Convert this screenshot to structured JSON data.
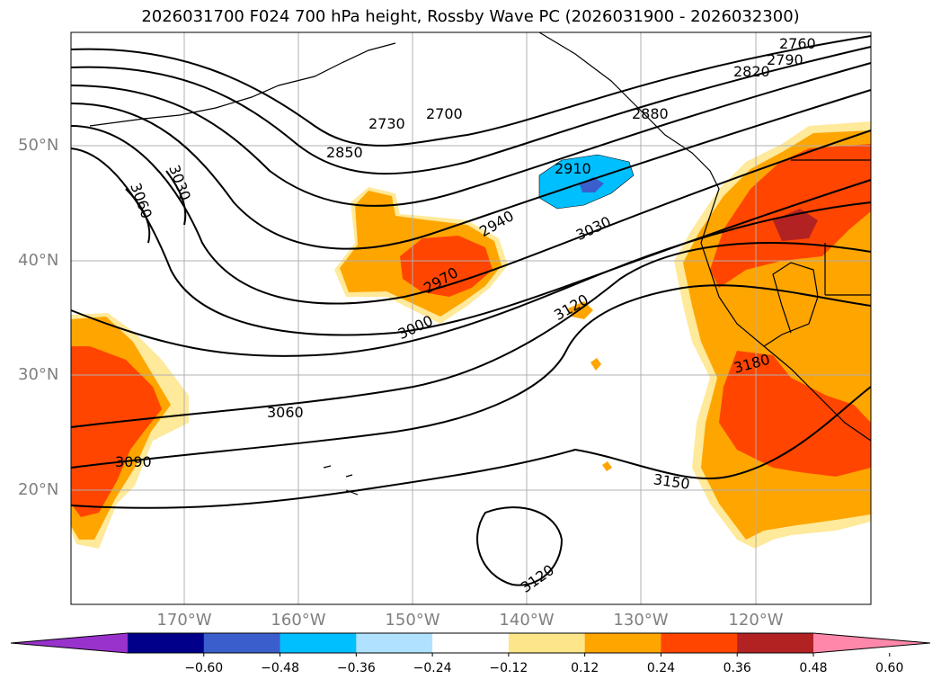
{
  "title": "2026031700 F024 700 hPa height, Rossby Wave PC (2026031900 - 2026032300)",
  "lat_labels": [
    "50°N",
    "40°N",
    "30°N",
    "20°N"
  ],
  "lon_labels": [
    "170°W",
    "160°W",
    "150°W",
    "140°W",
    "130°W",
    "120°W"
  ],
  "colorbar": {
    "tick_labels": [
      "−0.60",
      "−0.48",
      "−0.36",
      "−0.24",
      "−0.12",
      "0.12",
      "0.24",
      "0.36",
      "0.48",
      "0.60"
    ],
    "colors": [
      "#9932cc",
      "#00008b",
      "#3a5fcd",
      "#00bfff",
      "#b0e2ff",
      "#ffffff",
      "#fde68a",
      "#ffa500",
      "#ff4500",
      "#b22222",
      "#ff88aa"
    ]
  },
  "contour_labels": [
    "2760",
    "2790",
    "2820",
    "2700",
    "2730",
    "2880",
    "2850",
    "2910",
    "3060",
    "3030",
    "2940",
    "3030",
    "2970",
    "3000",
    "3120",
    "3180",
    "3060",
    "3090",
    "3150",
    "3120"
  ]
}
